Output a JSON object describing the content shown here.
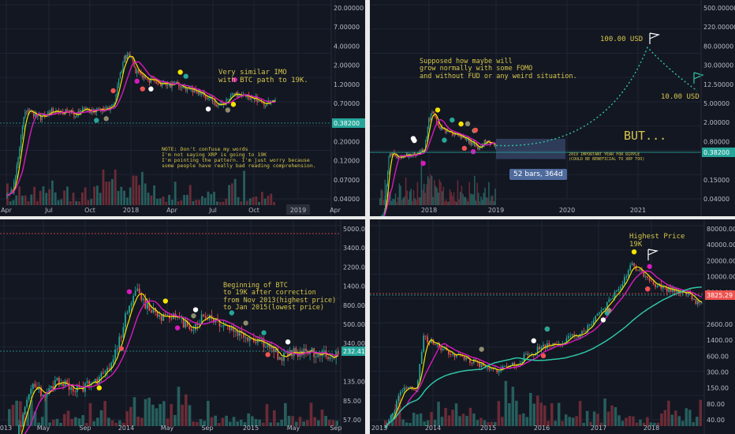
{
  "chart_data": [
    {
      "type": "candlestick",
      "x_ticks": [
        "Apr",
        "Jul",
        "Oct",
        "2018",
        "Apr",
        "Jul",
        "Oct",
        "2019",
        "Apr"
      ],
      "y_ticks": [
        "20.00000",
        "7.00000",
        "4.00000",
        "2.00000",
        "1.20000",
        "0.70000",
        "0.38200",
        "0.20000",
        "0.12000",
        "0.07000",
        "0.04000"
      ],
      "current_price": "0.38200",
      "annotation": "Very similar IMO\nwith BTC path to 19K.",
      "note": "NOTE: Don't confuse my words\nI'm not saying XRP is going to 19K\nI'm pointing the pattern. I'm just worry because\nsome people have really bad reading comprehension.",
      "close": [
        0.006,
        0.007,
        0.03,
        0.2,
        0.25,
        0.2,
        0.18,
        0.2,
        0.24,
        0.22,
        0.23,
        0.24,
        0.2,
        0.22,
        0.25,
        0.24,
        0.25,
        0.26,
        0.25,
        0.3,
        0.9,
        2.5,
        2.8,
        1.4,
        1.1,
        0.95,
        0.9,
        0.75,
        0.8,
        0.7,
        0.85,
        0.7,
        0.65,
        0.6,
        0.55,
        0.5,
        0.45,
        0.35,
        0.3,
        0.33,
        0.45,
        0.5,
        0.46,
        0.48,
        0.42,
        0.38,
        0.32,
        0.36,
        0.38
      ]
    },
    {
      "type": "candlestick",
      "x_ticks": [
        "2018",
        "2019",
        "2020",
        "2021"
      ],
      "y_ticks": [
        "500.00000",
        "220.00000",
        "80.00000",
        "30.00000",
        "12.50000",
        "5.00000",
        "2.00000",
        "0.80000",
        "0.38200",
        "0.15000",
        "0.04000"
      ],
      "current_price": "0.38200",
      "annotation": "Supposed how maybe will\ngrow normally with some FOMO\nand without FUD or any weird situation.",
      "label_100": "100.00 USD",
      "label_10": "10.00 USD",
      "but": "BUT...",
      "note_2019": "2019 IMPORTANT YEAR FOR RIPPLE\n(COULD BE BENEFICIAL TO XRP TOO)",
      "measure": "52 bars, 364d",
      "close": [
        0.006,
        0.01,
        0.2,
        0.25,
        0.2,
        0.22,
        0.24,
        0.22,
        0.24,
        0.26,
        0.3,
        1.5,
        2.6,
        1.2,
        0.95,
        0.85,
        0.8,
        0.75,
        0.65,
        0.55,
        0.5,
        0.45,
        0.33,
        0.4,
        0.5,
        0.45,
        0.38
      ]
    },
    {
      "type": "candlestick",
      "x_ticks": [
        "2013",
        "May",
        "Sep",
        "2014",
        "May",
        "Sep",
        "2015",
        "May",
        "Sep"
      ],
      "y_ticks": [
        "5000.00",
        "3400.00",
        "2200.00",
        "1400.00",
        "800.00",
        "500.00",
        "340.00",
        "232.41",
        "135.00",
        "85.00",
        "57.00"
      ],
      "current_price": "232.41",
      "annotation": "Beginning of BTC\nto 19K after correction\nfrom Nov 2013(highest price)\nto Jan 2015(lowest price)",
      "close": [
        20,
        30,
        60,
        110,
        90,
        100,
        120,
        110,
        95,
        100,
        110,
        125,
        140,
        200,
        400,
        900,
        1100,
        800,
        700,
        600,
        650,
        550,
        500,
        450,
        580,
        600,
        520,
        480,
        420,
        380,
        350,
        330,
        300,
        250,
        220,
        240,
        250,
        260,
        240,
        230,
        235,
        232
      ]
    },
    {
      "type": "candlestick",
      "x_ticks": [
        "2013",
        "2014",
        "2015",
        "2016",
        "2017",
        "2018"
      ],
      "y_ticks": [
        "80000.00",
        "40000.00",
        "20000.00",
        "10000.00",
        "5000.00",
        "3825.29",
        "2600.00",
        "1400.00",
        "600.00",
        "300.00",
        "150.00",
        "80.00",
        "40.00"
      ],
      "current_price": "3825.29",
      "annotation": "Highest Price\n19K",
      "close": [
        20,
        40,
        90,
        120,
        100,
        900,
        750,
        600,
        500,
        450,
        400,
        350,
        300,
        250,
        230,
        250,
        280,
        300,
        400,
        450,
        600,
        650,
        700,
        750,
        900,
        1000,
        1200,
        1800,
        2500,
        4000,
        6000,
        10000,
        19000,
        14000,
        11000,
        8000,
        7000,
        6500,
        6300,
        6000,
        4000,
        3800
      ]
    }
  ]
}
